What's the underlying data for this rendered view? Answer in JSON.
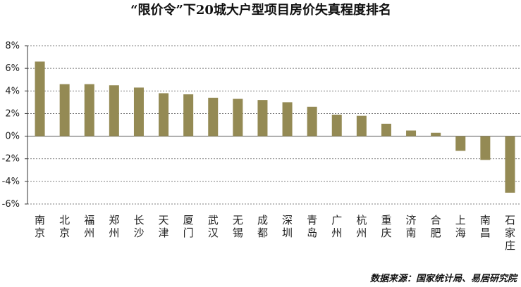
{
  "chart_data": {
    "type": "bar",
    "title": "“限价令”下20城大户型项目房价失真程度排名",
    "categories": [
      "南京",
      "北京",
      "福州",
      "郑州",
      "长沙",
      "天津",
      "厦门",
      "武汉",
      "无锡",
      "成都",
      "深圳",
      "青岛",
      "广州",
      "杭州",
      "重庆",
      "济南",
      "合肥",
      "上海",
      "南昌",
      "石家庄"
    ],
    "values": [
      6.6,
      4.6,
      4.6,
      4.5,
      4.3,
      3.8,
      3.7,
      3.4,
      3.3,
      3.2,
      3.0,
      2.6,
      1.9,
      1.8,
      1.1,
      0.5,
      0.3,
      -1.3,
      -2.1,
      -5.0
    ],
    "yticks": [
      "8%",
      "6%",
      "4%",
      "2%",
      "0%",
      "-2%",
      "-4%",
      "-6%"
    ],
    "ylim": [
      -6,
      8
    ],
    "xlabel": "",
    "ylabel": "",
    "grid": true,
    "bar_color": "#948a54",
    "source": "数据来源：国家统计局、易居研究院"
  }
}
